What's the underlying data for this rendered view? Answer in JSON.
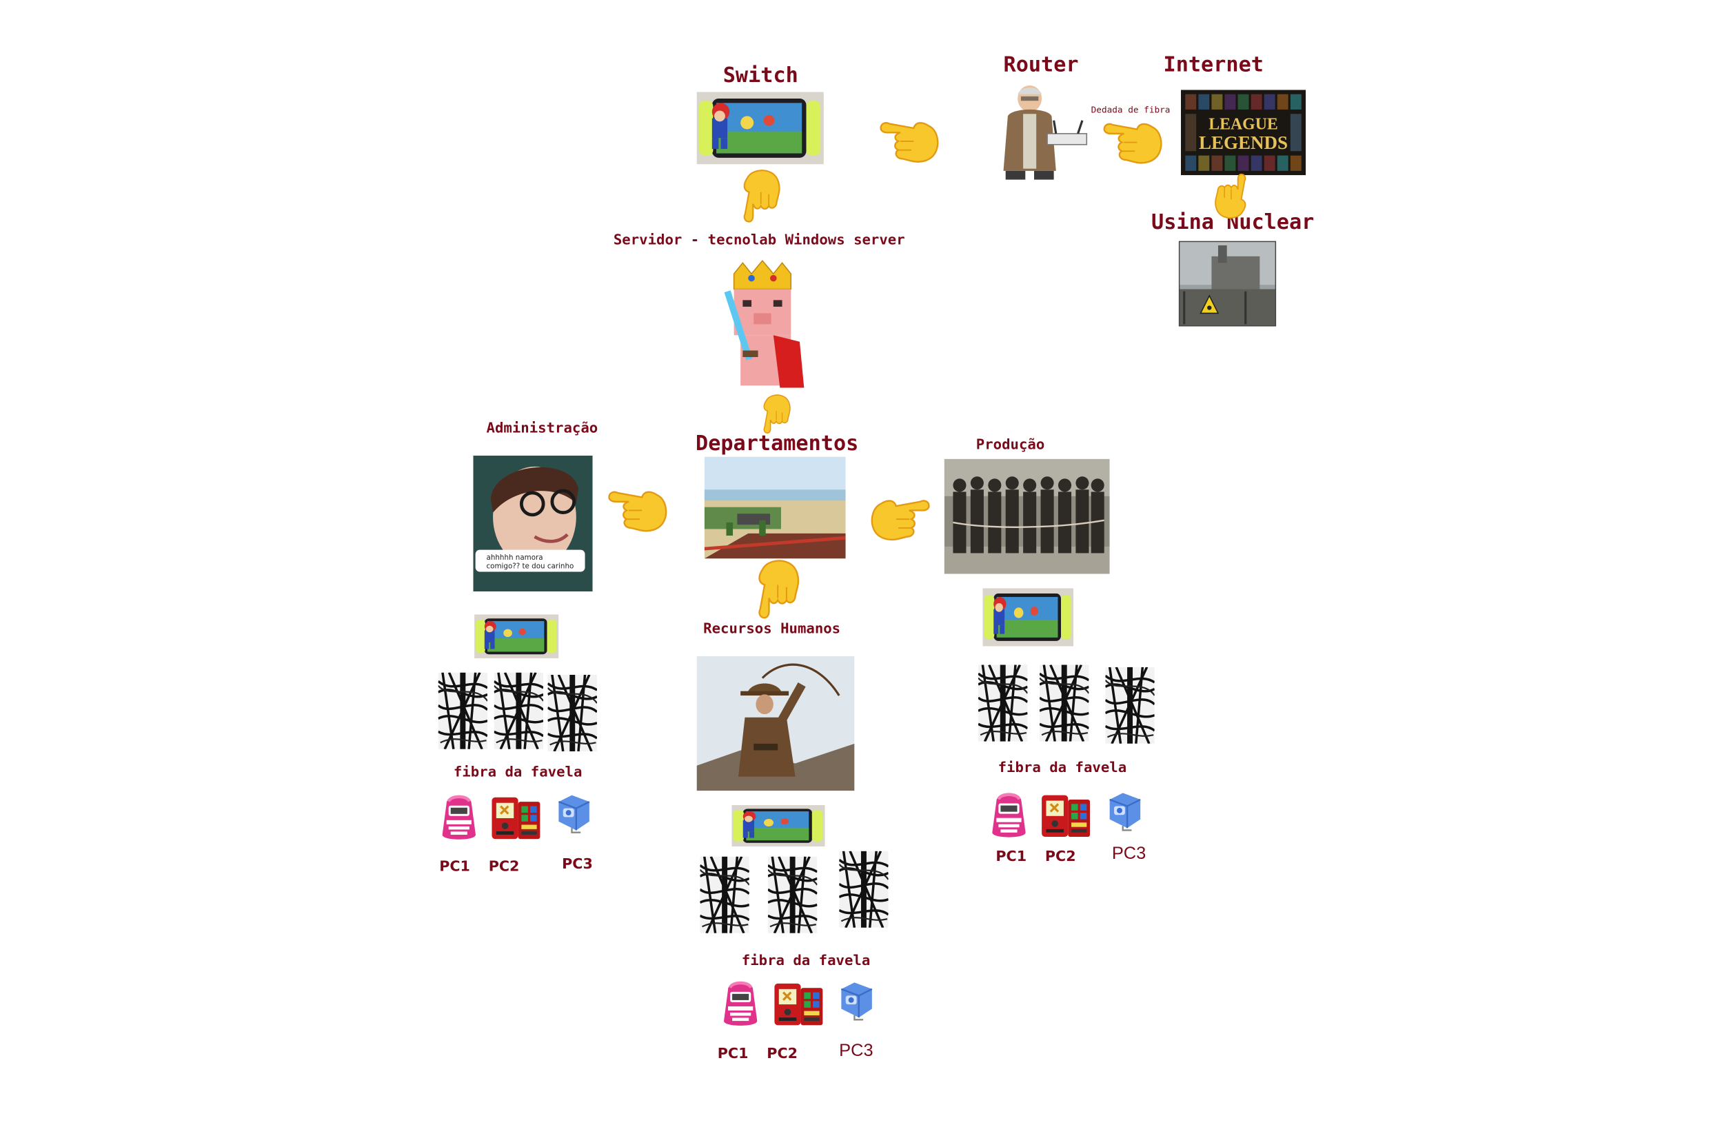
{
  "colors": {
    "label": "#7a0a1a",
    "hand": "#f7c72b",
    "hand_shadow": "#e39a12"
  },
  "nodes": {
    "switch": "Switch",
    "router": "Router",
    "internet": "Internet",
    "fiber_link": "Dedada de fibra",
    "nuclear": "Usina Nuclear",
    "server": "Servidor - tecnolab Windows server",
    "departments": "Departamentos",
    "admin": "Administração",
    "production": "Produção",
    "hr": "Recursos Humanos"
  },
  "internet_logo": {
    "line1": "LEAGUE",
    "line2": "LEGENDS"
  },
  "admin_photo_caption": {
    "line1": "ahhhhh namora",
    "line2": "comigo?? te dou carinho"
  },
  "branches": {
    "admin": {
      "cabling": "fibra da favela",
      "pcs": [
        "PC1",
        "PC2",
        "PC3"
      ]
    },
    "hr": {
      "cabling": "fibra da favela",
      "pcs": [
        "PC1",
        "PC2",
        "PC3"
      ]
    },
    "production": {
      "cabling": "fibra da favela",
      "pcs": [
        "PC1",
        "PC2",
        "PC3"
      ]
    }
  }
}
